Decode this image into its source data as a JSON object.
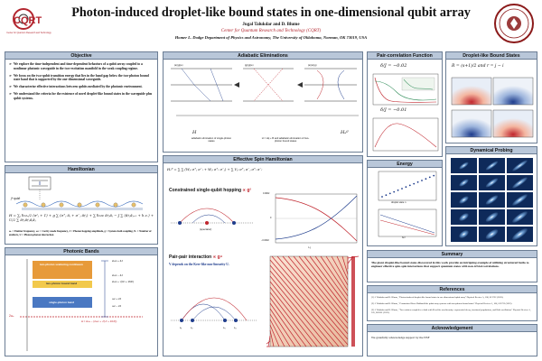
{
  "header": {
    "title": "Photon-induced droplet-like bound states in one-dimensional qubit array",
    "authors": "Jugal Talukdar and D. Blume",
    "center": "Center for Quantum Research and Technology (CQRT)",
    "department": "Homer L. Dodge Department of Physics and Astronomy, The University of Oklahoma, Norman, OK 73019, USA",
    "logo_left": "CQRT",
    "logo_left_sub": "Center for Quantum Research and Technology"
  },
  "objective": {
    "title": "Objective",
    "items": [
      "We explore the time-independent and time-dependent behaviors of a qubit array coupled to a nonlinear photonic waveguide in the two-excitation manifold in the weak coupling regime.",
      "We focus on the two-qubit transition energy that lies in the band gap below the two-photon bound state band that is supported by the one-dimensional waveguide.",
      "We characterize effective interactions between qubits mediated by the photonic environment.",
      "We understand the criteria for the existence of novel droplet-like bound states in the waveguide plus qubit systems."
    ]
  },
  "hamiltonian": {
    "title": "Hamiltonian",
    "qubit_label": "jᵗʰ qubit",
    "eq": "H = ∑ⱼ ℏωₑ/2 (σᶻⱼ + 1) + g ∑ (σ⁺ⱼ âⱼ + σ⁻ⱼ â†ⱼ) + ∑ ℏωᴄ â†ⱼâⱼ − J ∑ (â†ⱼâⱼ₊₁ + h.c.) + U/2 ∑ â†ⱼâ†ⱼâⱼâⱼ",
    "legend": "ωₑ = Emitter frequency, ωᴄ = Cavity mode frequency, J = Photon hopping amplitude, g = System-bath coupling, Nₑ = Number of emitters, U = Photon-photon interaction"
  },
  "photonic_bands": {
    "title": "Photonic Bands",
    "bands": [
      "two-photon scattering continuum",
      "two-photon bound band",
      "single-photon band"
    ],
    "labels": [
      "2ωᴄ + 4J",
      "2ωᴄ − 4J",
      "2ωᴄ + √(U² + 16J²)",
      "ωᴄ + 2J",
      "ωᴄ − 2J",
      "Δ = 2ωₑ − (2ωᴄ + √(U² + 16J²))"
    ],
    "axis_label": "2ωₑ"
  },
  "adiabatic": {
    "title": "Adiabatic Eliminations",
    "cap1": "adiabatic elimination of single-photon states",
    "cap2": "elimination of two-photon bound states",
    "cap_h": "H = Hq + B and adiabatic elimination of two-photon bound states",
    "states": [
      "|e⟩|g⟩|e⟩",
      "|g⟩|g⟩|e⟩",
      "|e⟩|e⟩|g⟩"
    ],
    "h_eff_label": "Hₑᶠᶠ",
    "h_label": "H"
  },
  "effective": {
    "title": "Effective Spin Hamiltonian",
    "eq": "Hₑᶠᶠ = ∑ ∑ (Wⱼₗ σ⁺ⱼ σ⁻ₗ + Wⱼₗ σ⁺ₗ σ⁻ⱼ) + ∑ Vⱼₗ σ⁺ⱼ σ⁻ⱼ σ⁺ₗ σ⁻ₗ",
    "sub1": "Constrained single-qubit hopping",
    "sub1_scale": "∝ g²",
    "spectator": "(spectator)",
    "sub2": "Pair-pair interaction",
    "sub2_scale": "∝ g⁴",
    "sub2_desc": "V depends on the Kerr-like non-linearity U.",
    "x_axis": "l−j",
    "y_ticks_top": [
      "0.0002",
      "0",
      "−0.0002"
    ],
    "sites": [
      "s₁",
      "s₂",
      "s₃",
      "s₄"
    ]
  },
  "pair_corr": {
    "title": "Pair-correlation Function",
    "label1": "δ/J = −0.02",
    "label2": "δ/J = −0.01",
    "energy_title": "Energy",
    "energy_xlabel": "droplet state n",
    "energy_xlabel2": "δ/J"
  },
  "droplet": {
    "title": "Droplet-like Bound States",
    "eq": "R = (s+1)/2 and r = j − i"
  },
  "dynamical": {
    "title": "Dynamical Probing"
  },
  "summary": {
    "title": "Summary",
    "text": "The giant droplet-like bound states discovered in this work provide an intriguing example of utilizing structured baths to engineer effective spin-spin interactions that support quantum states with non-trivial correlations."
  },
  "references": {
    "title": "References",
    "items": [
      "[1] J. Talukdar and D. Blume, \"Photon-induced droplet-like bound states in one-dimensional qubit array\" Physical Review A, 108, 013722 (2023).",
      "[2] J. Talukdar and D. Blume, \"Constrained Bose-Hubbard-like qubit array systems with two-photon bound states\" Physical Review A, 106, 013722 (2022).",
      "[3] J. Talukdar and D. Blume, \"Two emitters coupled to a bath with Kerr-like non-linearity: exponential decay, fractional populations, and Rabi oscillations\" Physical Review A, 105, 063501 (2022)."
    ]
  },
  "ack": {
    "title": "Acknowledgement",
    "text": "We gratefully acknowledge support by the NSF"
  },
  "colors": {
    "panel_header": "#b9c7d9",
    "border": "#6b7d94",
    "accent_red": "#c0262e",
    "accent_blue": "#1e3c8c",
    "band_orange": "#e79a3a",
    "band_yellow": "#f2c94c",
    "band_blue": "#4a78c2"
  }
}
